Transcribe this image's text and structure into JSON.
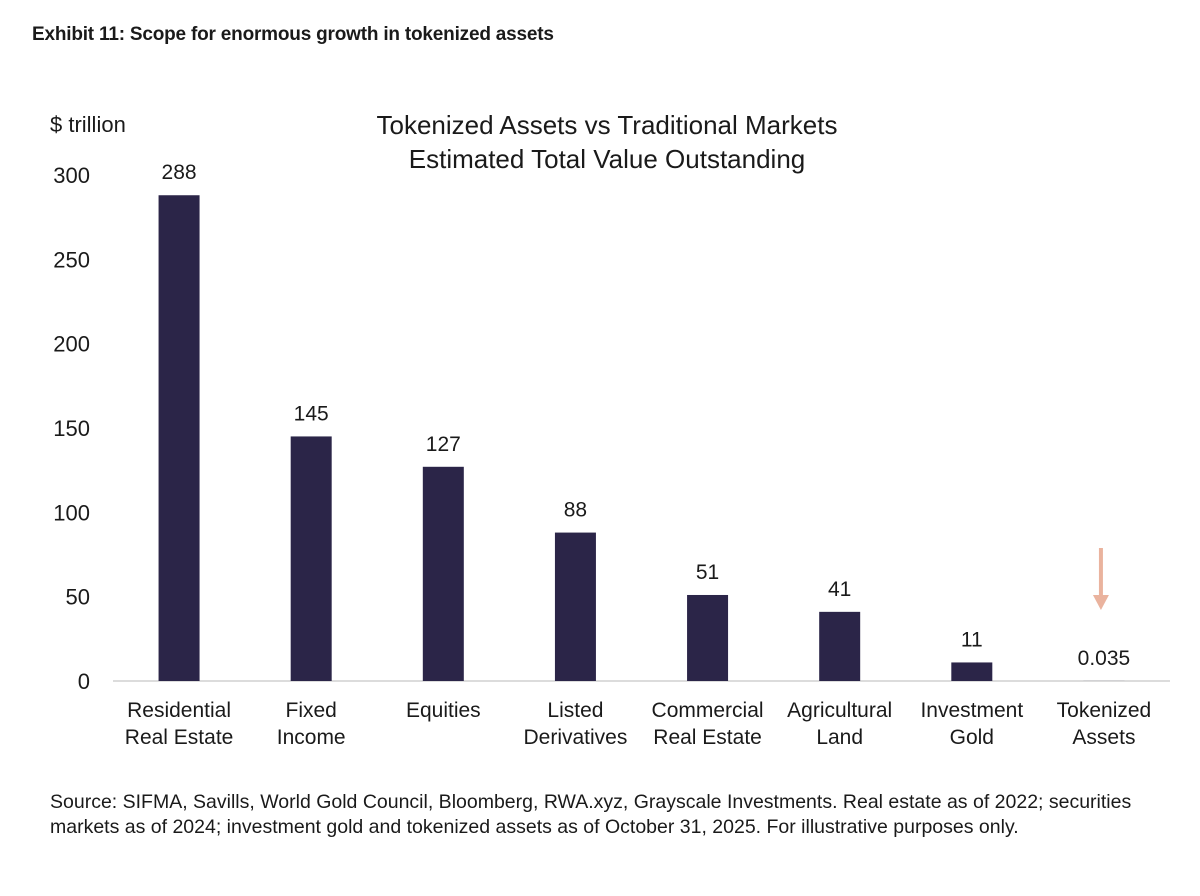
{
  "exhibit_title": "Exhibit 11: Scope for enormous growth in tokenized assets",
  "source_note": "Source: SIFMA, Savills, World Gold Council, Bloomberg, RWA.xyz, Grayscale Investments. Real estate as of 2022; securities markets as of 2024; investment gold and tokenized assets as of October 31, 2025. For illustrative purposes only.",
  "colors": {
    "bar": "#2b2548",
    "arrow": "#eab39e",
    "axis": "#d0d0d0",
    "text": "#1a1a1a"
  },
  "chart_data": {
    "type": "bar",
    "title": [
      "Tokenized Assets vs Traditional Markets",
      "Estimated Total Value Outstanding"
    ],
    "ylabel": "$ trillion",
    "xlabel": "",
    "ylim": [
      0,
      300
    ],
    "yticks": [
      0,
      50,
      100,
      150,
      200,
      250,
      300
    ],
    "grid": false,
    "categories": [
      [
        "Residential",
        "Real Estate"
      ],
      [
        "Fixed",
        "Income"
      ],
      [
        "Equities"
      ],
      [
        "Listed",
        "Derivatives"
      ],
      [
        "Commercial",
        "Real Estate"
      ],
      [
        "Agricultural",
        "Land"
      ],
      [
        "Investment",
        "Gold"
      ],
      [
        "Tokenized",
        "Assets"
      ]
    ],
    "values": [
      288,
      145,
      127,
      88,
      51,
      41,
      11,
      0.035
    ],
    "data_labels": [
      "288",
      "145",
      "127",
      "88",
      "51",
      "41",
      "11",
      "0.035"
    ],
    "annotation": {
      "type": "down-arrow",
      "target_category_index": 7
    }
  }
}
